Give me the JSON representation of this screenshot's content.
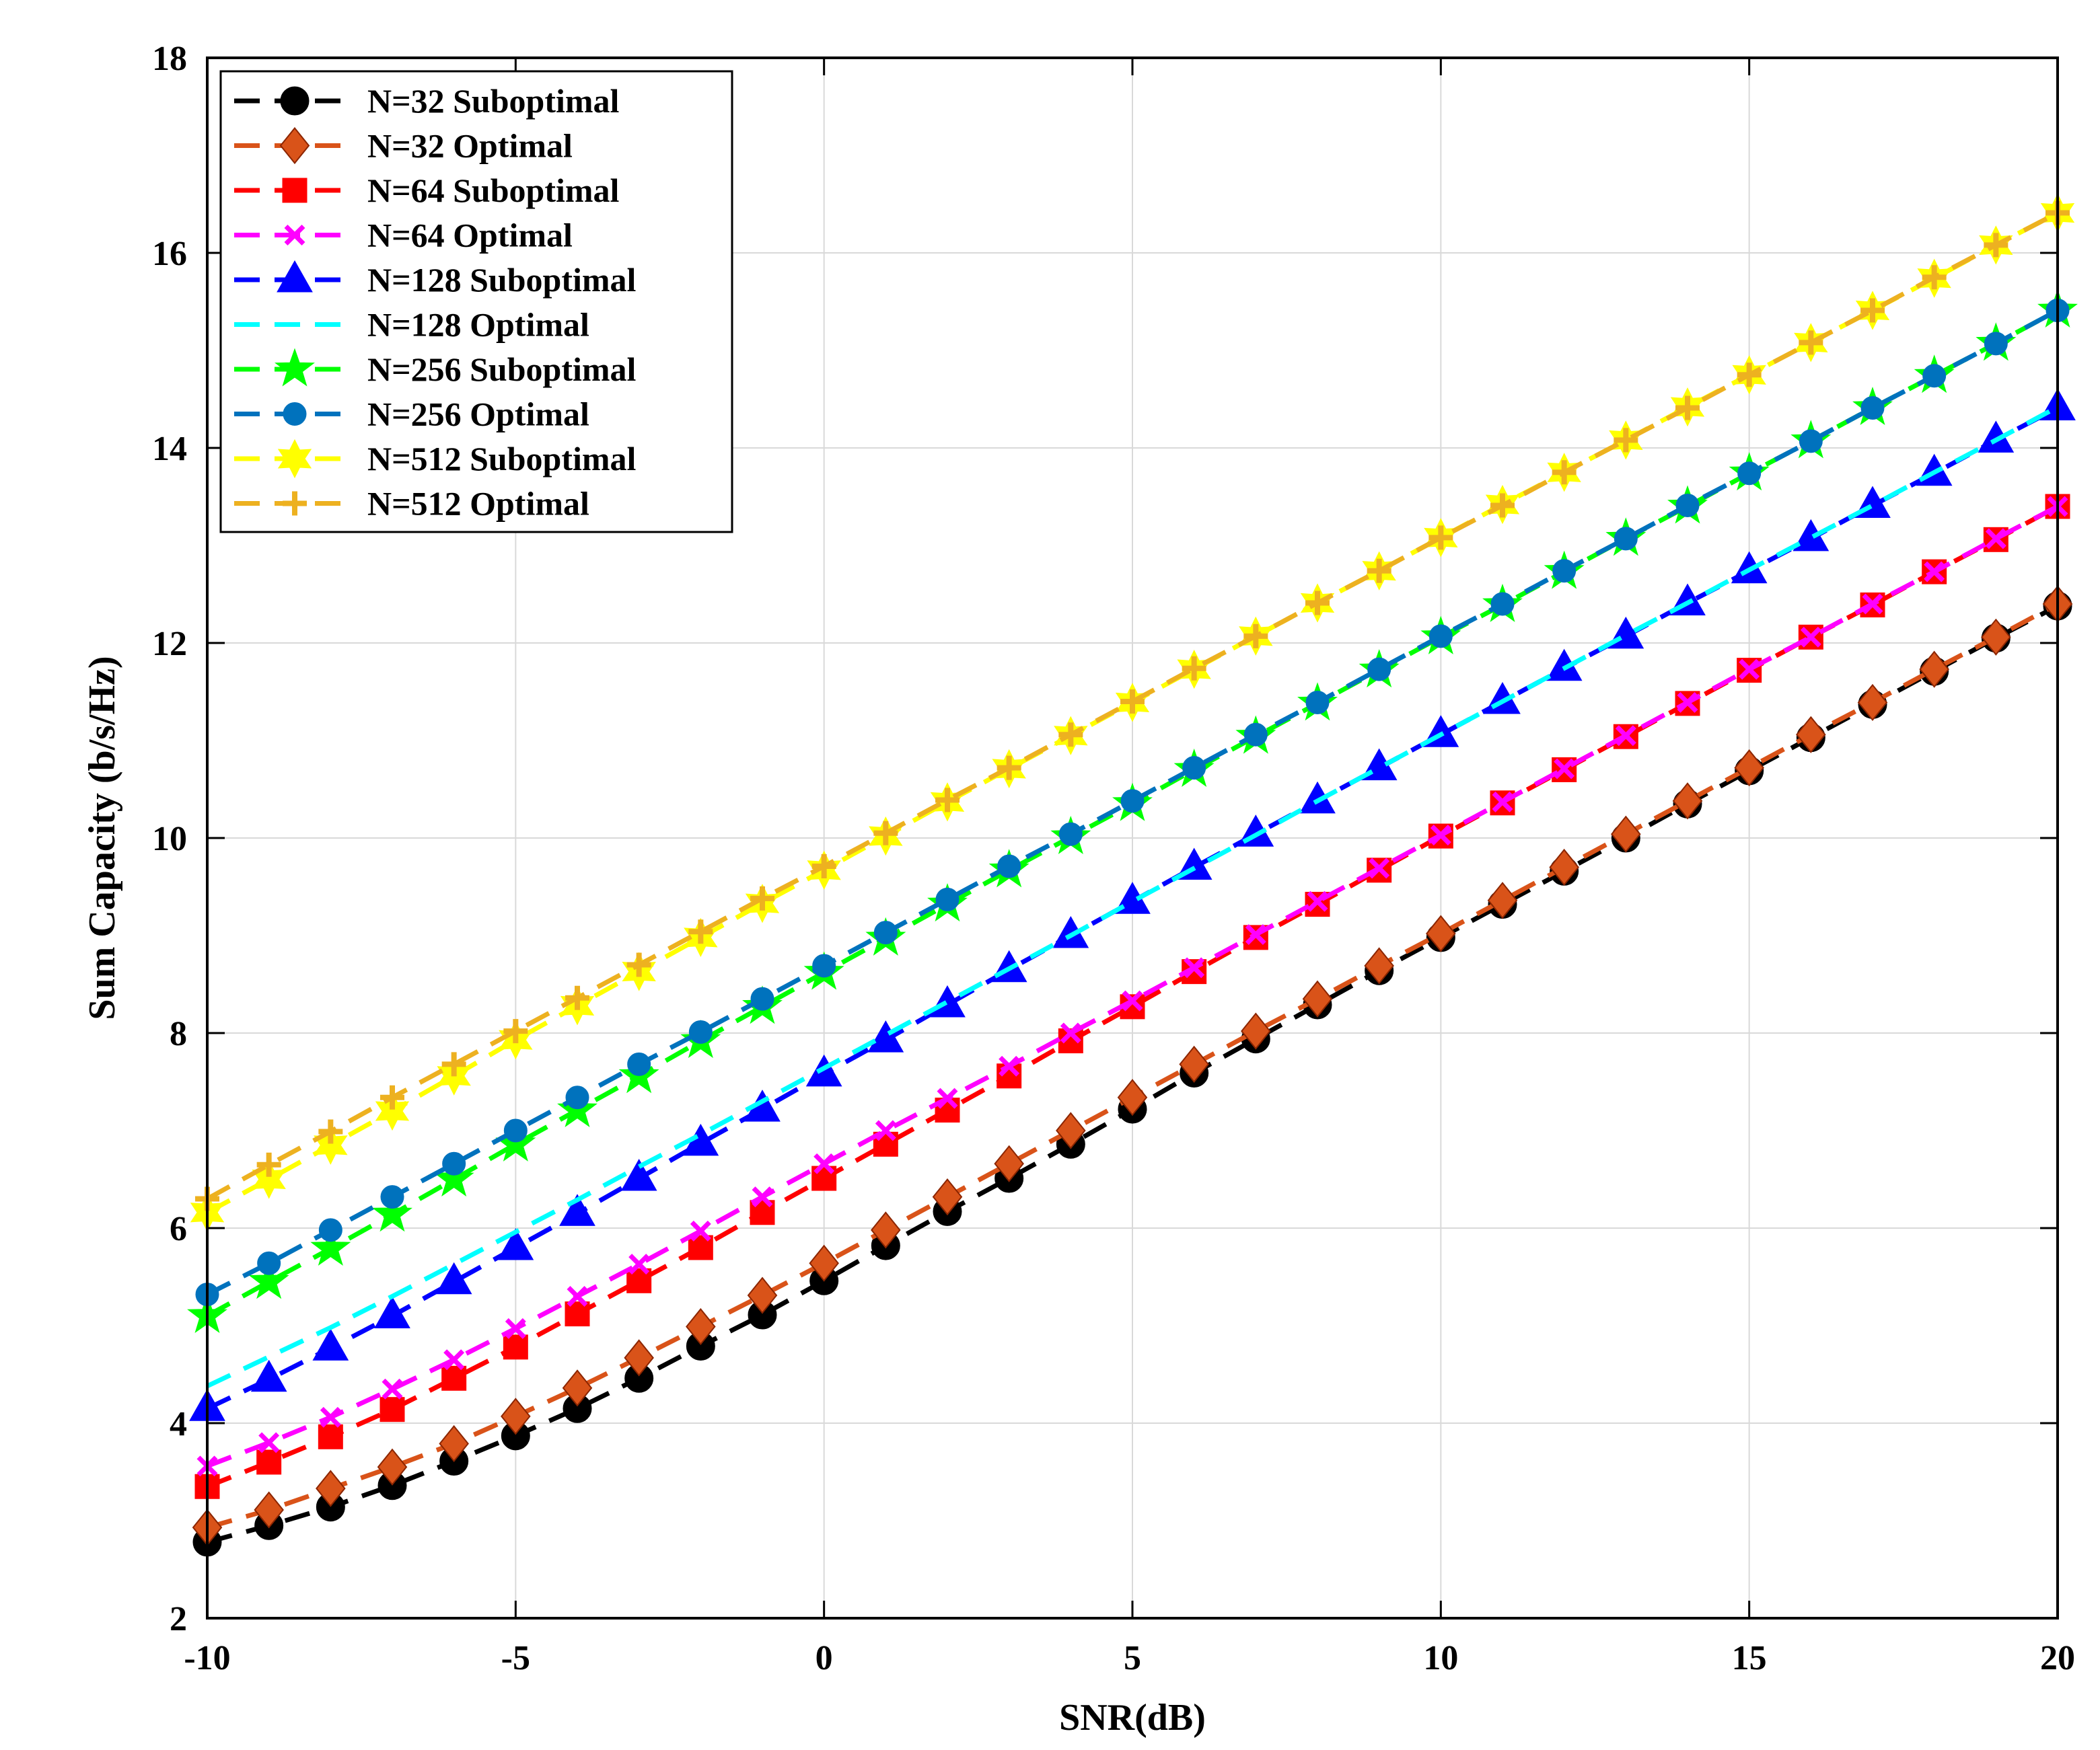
{
  "chart_data": {
    "type": "line",
    "title": "",
    "xlabel": "SNR(dB)",
    "ylabel": "Sum Capacity (b/s/Hz)",
    "xlim": [
      -10,
      20
    ],
    "ylim": [
      2,
      18
    ],
    "xticks": [
      -10,
      -5,
      0,
      5,
      10,
      15,
      20
    ],
    "yticks": [
      2,
      4,
      6,
      8,
      10,
      12,
      14,
      16,
      18
    ],
    "grid": true,
    "legend_position": "top-left",
    "x": [
      -10,
      -9,
      -8,
      -7,
      -6,
      -5,
      -4,
      -3,
      -2,
      -1,
      0,
      1,
      2,
      3,
      4,
      5,
      6,
      7,
      8,
      9,
      10,
      11,
      12,
      13,
      14,
      15,
      16,
      17,
      18,
      19,
      20
    ],
    "series": [
      {
        "name": "N=32 Suboptimal",
        "color": "#000000",
        "marker": "circle",
        "values": [
          2.78,
          2.95,
          3.14,
          3.36,
          3.61,
          3.87,
          4.15,
          4.46,
          4.79,
          5.11,
          5.46,
          5.82,
          6.17,
          6.51,
          6.86,
          7.22,
          7.59,
          7.94,
          8.29,
          8.64,
          8.98,
          9.32,
          9.66,
          10.0,
          10.35,
          10.69,
          11.03,
          11.37,
          11.71,
          12.05,
          12.38
        ]
      },
      {
        "name": "N=32 Optimal",
        "color": "#D95319",
        "marker": "diamond",
        "values": [
          2.93,
          3.11,
          3.33,
          3.55,
          3.79,
          4.07,
          4.36,
          4.67,
          4.99,
          5.31,
          5.64,
          5.98,
          6.32,
          6.66,
          7.0,
          7.34,
          7.68,
          8.02,
          8.35,
          8.69,
          9.02,
          9.36,
          9.7,
          10.04,
          10.38,
          10.72,
          11.06,
          11.39,
          11.73,
          12.06,
          12.4
        ]
      },
      {
        "name": "N=64 Suboptimal",
        "color": "#FF0000",
        "marker": "square",
        "values": [
          3.35,
          3.6,
          3.86,
          4.14,
          4.46,
          4.78,
          5.12,
          5.46,
          5.8,
          6.16,
          6.51,
          6.86,
          7.21,
          7.56,
          7.92,
          8.27,
          8.63,
          8.98,
          9.32,
          9.67,
          10.02,
          10.36,
          10.7,
          11.04,
          11.38,
          11.72,
          12.06,
          12.39,
          12.73,
          13.06,
          13.4
        ]
      },
      {
        "name": "N=64 Optimal",
        "color": "#FF00FF",
        "marker": "x",
        "values": [
          3.56,
          3.8,
          4.06,
          4.35,
          4.65,
          4.97,
          5.3,
          5.63,
          5.97,
          6.32,
          6.66,
          7.0,
          7.33,
          7.66,
          8.0,
          8.33,
          8.67,
          9.01,
          9.35,
          9.69,
          10.03,
          10.37,
          10.71,
          11.05,
          11.39,
          11.73,
          12.06,
          12.4,
          12.73,
          13.07,
          13.4
        ]
      },
      {
        "name": "N=128 Suboptimal",
        "color": "#0000FF",
        "marker": "triangle",
        "values": [
          4.15,
          4.45,
          4.77,
          5.1,
          5.45,
          5.8,
          6.15,
          6.51,
          6.87,
          7.22,
          7.58,
          7.93,
          8.29,
          8.65,
          9.0,
          9.35,
          9.7,
          10.04,
          10.38,
          10.72,
          11.06,
          11.4,
          11.74,
          12.07,
          12.41,
          12.74,
          13.07,
          13.41,
          13.74,
          14.08,
          14.41
        ]
      },
      {
        "name": "N=128 Optimal",
        "color": "#00FFFF",
        "marker": "none",
        "values": [
          4.38,
          4.68,
          4.98,
          5.3,
          5.63,
          5.96,
          6.29,
          6.63,
          6.96,
          7.3,
          7.64,
          7.98,
          8.32,
          8.66,
          9.0,
          9.35,
          9.69,
          10.03,
          10.38,
          10.72,
          11.06,
          11.4,
          11.74,
          12.08,
          12.41,
          12.75,
          13.08,
          13.41,
          13.75,
          14.08,
          14.42
        ]
      },
      {
        "name": "N=256 Suboptimal",
        "color": "#00FF00",
        "marker": "star",
        "values": [
          5.1,
          5.45,
          5.79,
          6.14,
          6.5,
          6.86,
          7.21,
          7.56,
          7.92,
          8.27,
          8.62,
          8.97,
          9.32,
          9.67,
          10.01,
          10.35,
          10.7,
          11.04,
          11.38,
          11.72,
          12.06,
          12.39,
          12.73,
          13.07,
          13.4,
          13.74,
          14.07,
          14.41,
          14.74,
          15.07,
          15.41
        ]
      },
      {
        "name": "N=256 Optimal",
        "color": "#0072BD",
        "marker": "dot",
        "values": [
          5.32,
          5.64,
          5.98,
          6.32,
          6.66,
          7.0,
          7.34,
          7.68,
          8.01,
          8.35,
          8.69,
          9.03,
          9.37,
          9.71,
          10.04,
          10.38,
          10.72,
          11.06,
          11.39,
          11.73,
          12.07,
          12.4,
          12.74,
          13.07,
          13.41,
          13.74,
          14.07,
          14.41,
          14.74,
          15.07,
          15.41
        ]
      },
      {
        "name": "N=512 Suboptimal",
        "color": "#FFFF00",
        "marker": "hexagram",
        "values": [
          6.16,
          6.5,
          6.85,
          7.2,
          7.56,
          7.93,
          8.28,
          8.63,
          8.98,
          9.33,
          9.67,
          10.02,
          10.37,
          10.71,
          11.05,
          11.39,
          11.73,
          12.07,
          12.41,
          12.74,
          13.08,
          13.42,
          13.75,
          14.08,
          14.42,
          14.75,
          15.08,
          15.41,
          15.74,
          16.08,
          16.41
        ]
      },
      {
        "name": "N=512 Optimal",
        "color": "#EDB120",
        "marker": "plus",
        "values": [
          6.3,
          6.65,
          6.99,
          7.34,
          7.68,
          8.02,
          8.36,
          8.7,
          9.04,
          9.38,
          9.71,
          10.05,
          10.39,
          10.72,
          11.06,
          11.4,
          11.74,
          12.07,
          12.41,
          12.74,
          13.08,
          13.41,
          13.75,
          14.08,
          14.41,
          14.75,
          15.08,
          15.41,
          15.75,
          16.08,
          16.41
        ]
      }
    ]
  }
}
